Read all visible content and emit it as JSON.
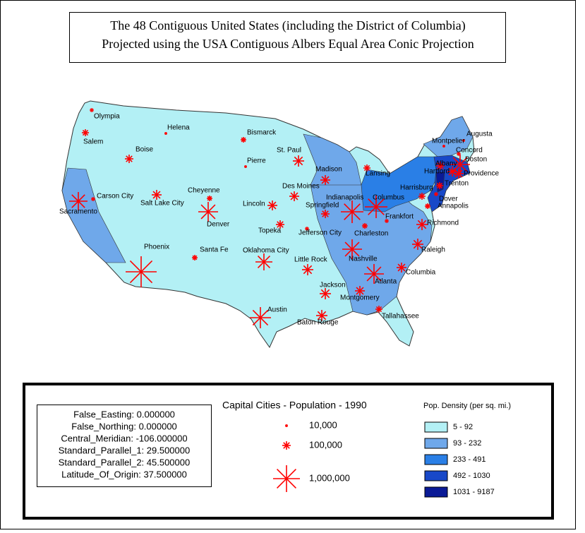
{
  "title": {
    "line1": "The 48 Contiguous United States (including the District of Columbia)",
    "line2": "Projected using the USA Contiguous Albers Equal Area Conic Projection"
  },
  "cities": [
    "Olympia",
    "Salem",
    "Boise",
    "Helena",
    "Bismarck",
    "Pierre",
    "St. Paul",
    "Madison",
    "Lansing",
    "Carson City",
    "Sacramento",
    "Salt Lake City",
    "Cheyenne",
    "Denver",
    "Des Moines",
    "Lincoln",
    "Indianapolis",
    "Springfield",
    "Columbus",
    "Harrisburg",
    "Montpelier",
    "Augusta",
    "Concord",
    "Albany",
    "Boston",
    "Hartford",
    "Providence",
    "Trenton",
    "Dover",
    "Annapolis",
    "Frankfort",
    "Topeka",
    "Jefferson City",
    "Charleston",
    "Richmond",
    "Santa Fe",
    "Oklahoma City",
    "Little Rock",
    "Nashville",
    "Raleigh",
    "Phoenix",
    "Columbia",
    "Atlanta",
    "Jackson",
    "Montgomery",
    "Austin",
    "Baton Rouge",
    "Tallahassee"
  ],
  "projection_parameters": [
    "False_Easting: 0.000000",
    "False_Northing: 0.000000",
    "Central_Meridian: -106.000000",
    "Standard_Parallel_1: 29.500000",
    "Standard_Parallel_2: 45.500000",
    "Latitude_Of_Origin: 37.500000"
  ],
  "symbol_legend": {
    "title": "Capital Cities - Population - 1990",
    "items": [
      "10,000",
      "100,000",
      "1,000,000"
    ],
    "color": "#ff0000"
  },
  "density_legend": {
    "title": "Pop. Density (per sq. mi.)",
    "classes": [
      {
        "label": "5 - 92",
        "color": "#b3f0f5"
      },
      {
        "label": "93 - 232",
        "color": "#6fa8ea"
      },
      {
        "label": "233 - 491",
        "color": "#2a7fe6"
      },
      {
        "label": "492 - 1030",
        "color": "#1848c8"
      },
      {
        "label": "1031 - 9187",
        "color": "#0a1a96"
      }
    ]
  }
}
